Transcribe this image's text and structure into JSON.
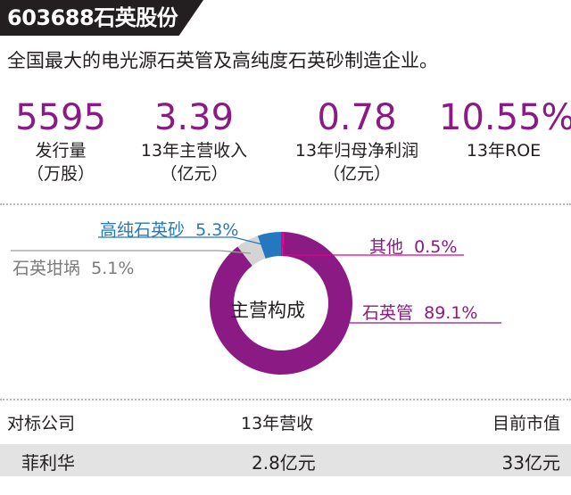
{
  "header": {
    "title": "603688石英股份",
    "subtitle": "全国最大的电光源石英管及高纯度石英砂制造企业。"
  },
  "kpis": [
    {
      "value": "5595",
      "label": "发行量\n（万股）"
    },
    {
      "value": "3.39",
      "label": "13年主营收入\n（亿元）"
    },
    {
      "value": "0.78",
      "label": "13年归母净利润\n（亿元）"
    },
    {
      "value": "10.55%",
      "label": "13年ROE"
    }
  ],
  "chart_data": {
    "type": "pie",
    "title": "主营构成",
    "slices": [
      {
        "name": "石英管",
        "value": 89.1,
        "value_label": "89.1%",
        "color": "#8b1a84"
      },
      {
        "name": "石英坩埚",
        "value": 5.1,
        "value_label": "5.1%",
        "color": "#d4d4d4"
      },
      {
        "name": "高纯石英砂",
        "value": 5.3,
        "value_label": "5.3%",
        "color": "#2478bf"
      },
      {
        "name": "其他",
        "value": 0.5,
        "value_label": "0.5%",
        "color": "#e0008a"
      }
    ]
  },
  "comparison": {
    "headers": [
      "对标公司",
      "13年营收",
      "目前市值"
    ],
    "rows": [
      [
        "菲利华",
        "2.8亿元",
        "33亿元"
      ]
    ]
  },
  "colors": {
    "accent": "#8b1a84",
    "blue": "#2478bf",
    "header_bg": "#231f20"
  }
}
